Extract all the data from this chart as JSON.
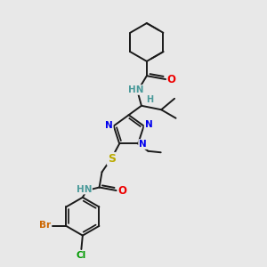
{
  "bg_color": "#e8e8e8",
  "bond_color": "#1a1a1a",
  "bond_width": 1.4,
  "atom_colors": {
    "N": "#0000ee",
    "O": "#ee0000",
    "S": "#bbaa00",
    "Br": "#cc6600",
    "Cl": "#009900",
    "H": "#4a9a9a",
    "C": "#1a1a1a"
  },
  "font_size": 7.5
}
